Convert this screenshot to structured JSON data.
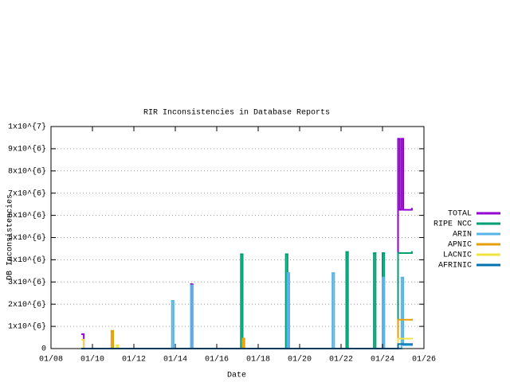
{
  "chart_data": {
    "type": "line",
    "step": true,
    "title": "RIR Inconsistencies in Database Reports",
    "x_label": "Date",
    "y_label": "DB Inconsistencies",
    "grid": true,
    "legend_position": "right",
    "xlim": [
      "2008-01",
      "2026-01"
    ],
    "xticks": [
      {
        "value": "2008-01",
        "label": "01/08"
      },
      {
        "value": "2010-01",
        "label": "01/10"
      },
      {
        "value": "2012-01",
        "label": "01/12"
      },
      {
        "value": "2014-01",
        "label": "01/14"
      },
      {
        "value": "2016-01",
        "label": "01/16"
      },
      {
        "value": "2018-01",
        "label": "01/18"
      },
      {
        "value": "2020-01",
        "label": "01/20"
      },
      {
        "value": "2022-01",
        "label": "01/22"
      },
      {
        "value": "2024-01",
        "label": "01/24"
      },
      {
        "value": "2026-01",
        "label": "01/26"
      }
    ],
    "ylim": [
      0,
      10000000
    ],
    "yticks": [
      0,
      {
        "value": 1000000,
        "label": "1x10^{6}"
      },
      {
        "value": 2000000,
        "label": "2x10^{6}"
      },
      {
        "value": 3000000,
        "label": "3x10^{6}"
      },
      {
        "value": 4000000,
        "label": "4x10^{6}"
      },
      {
        "value": 5000000,
        "label": "5x10^{6}"
      },
      {
        "value": 6000000,
        "label": "6x10^{6}"
      },
      {
        "value": 7000000,
        "label": "7x10^{6}"
      },
      {
        "value": 8000000,
        "label": "8x10^{6}"
      },
      {
        "value": 9000000,
        "label": "9x10^{6}"
      },
      {
        "value": 10000000,
        "label": "1x10^{7}"
      }
    ],
    "series": [
      {
        "name": "TOTAL",
        "color": "#9400d3",
        "x": [
          "2009-07",
          "2009-08",
          "2014-10",
          "2014-11",
          "2024-10",
          "2024-11",
          "2024-12",
          "2025-01",
          "2025-06"
        ],
        "values": [
          650000,
          0,
          2900000,
          0,
          9450000,
          6250000,
          9450000,
          6250000,
          6300000
        ]
      },
      {
        "name": "RIPE NCC",
        "color": "#009e73",
        "x": [
          "2009-07",
          "2017-03",
          "2017-04",
          "2019-05",
          "2019-06",
          "2022-04",
          "2022-05",
          "2023-08",
          "2023-09",
          "2024-01",
          "2024-02",
          "2024-10",
          "2025-06"
        ],
        "values": [
          0,
          4250000,
          0,
          4250000,
          0,
          4350000,
          0,
          4300000,
          0,
          4300000,
          0,
          4300000,
          4350000
        ]
      },
      {
        "name": "ARIN",
        "color": "#56b4e9",
        "x": [
          "2009-07",
          "2013-11",
          "2013-12",
          "2014-10",
          "2014-11",
          "2019-06",
          "2019-07",
          "2021-08",
          "2021-09",
          "2024-01",
          "2024-02",
          "2024-12",
          "2025-01",
          "2025-06"
        ],
        "values": [
          0,
          2150000,
          0,
          2850000,
          0,
          3400000,
          0,
          3400000,
          0,
          3200000,
          0,
          3200000,
          150000,
          150000
        ]
      },
      {
        "name": "APNIC",
        "color": "#e69f00",
        "x": [
          "2009-07",
          "2010-12",
          "2011-01",
          "2017-04",
          "2017-05",
          "2024-10",
          "2025-06"
        ],
        "values": [
          0,
          800000,
          0,
          450000,
          0,
          1300000,
          1300000
        ]
      },
      {
        "name": "LACNIC",
        "color": "#f0e442",
        "x": [
          "2009-07",
          "2009-08",
          "2011-03",
          "2011-04",
          "2024-10",
          "2025-06"
        ],
        "values": [
          400000,
          0,
          150000,
          0,
          450000,
          450000
        ]
      },
      {
        "name": "AFRINIC",
        "color": "#0072b2",
        "x": [
          "2009-07",
          "2024-10",
          "2025-06"
        ],
        "values": [
          0,
          200000,
          200000
        ]
      }
    ]
  }
}
